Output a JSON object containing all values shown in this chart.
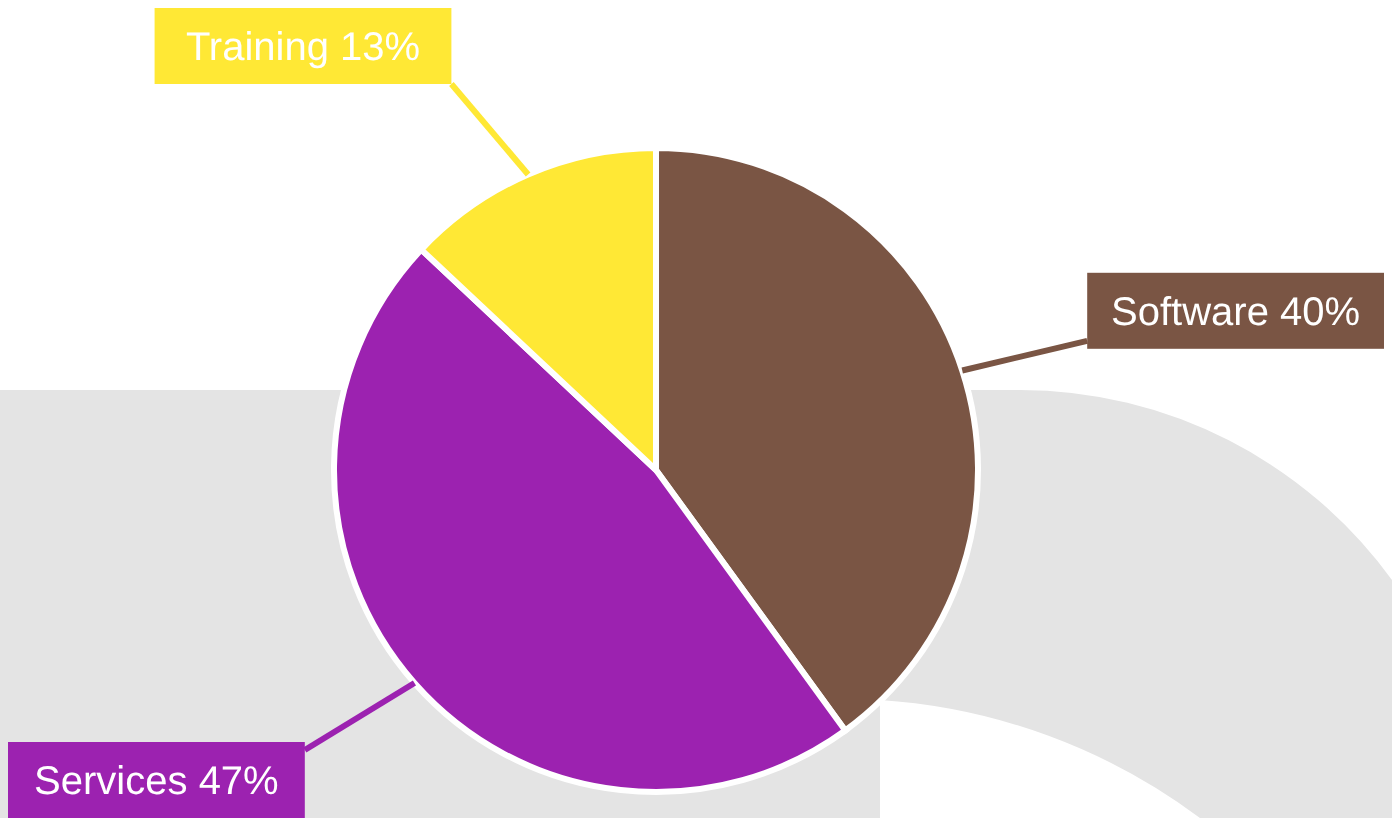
{
  "chart_data": {
    "type": "pie",
    "categories": [
      "Software",
      "Services",
      "Training"
    ],
    "values": [
      40,
      47,
      13
    ],
    "value_labels": [
      "40%",
      "47%",
      "13%"
    ],
    "colors": [
      "#7a5544",
      "#9c22b0",
      "#ffe835"
    ]
  }
}
